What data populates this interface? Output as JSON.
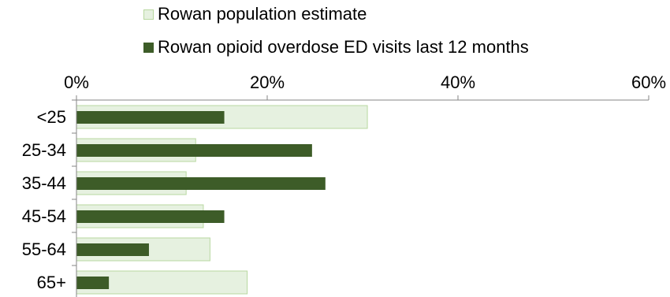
{
  "chart_data": {
    "type": "bar",
    "orientation": "horizontal",
    "categories": [
      "<25",
      "25-34",
      "35-44",
      "45-54",
      "55-64",
      "65+"
    ],
    "series": [
      {
        "name": "Rowan population estimate",
        "values": [
          30.5,
          12.5,
          11.5,
          13.3,
          14.0,
          17.9
        ],
        "fill": "#e6f1e0",
        "stroke": "#b8d8a0"
      },
      {
        "name": "Rowan opioid overdose ED visits last 12 months",
        "values": [
          15.5,
          24.7,
          26.1,
          15.5,
          7.6,
          3.4
        ],
        "fill": "#3d5c28",
        "stroke": "#3d5c28"
      }
    ],
    "xlim": [
      0,
      60
    ],
    "xticks": [
      0,
      20,
      40,
      60
    ],
    "xtick_labels": [
      "0%",
      "20%",
      "40%",
      "60%"
    ],
    "x_axis_position": "top",
    "legend_position": "top",
    "grid": false
  }
}
